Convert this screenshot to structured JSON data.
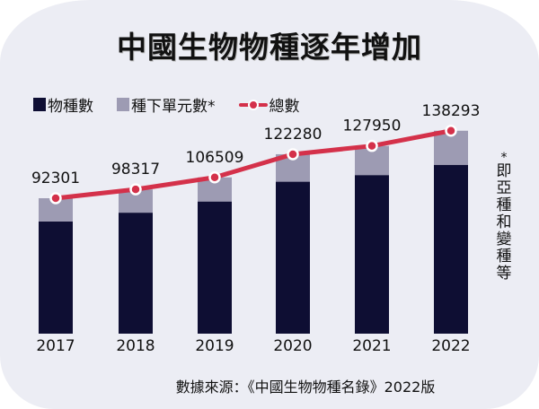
{
  "chart_data": {
    "type": "bar",
    "title": "中國生物物種逐年增加",
    "categories": [
      "2017",
      "2018",
      "2019",
      "2020",
      "2021",
      "2022"
    ],
    "series": [
      {
        "name": "物種數",
        "type": "bar",
        "stack": "total",
        "color": "#0e0e33",
        "values": [
          76463,
          82456,
          90063,
          103561,
          108083,
          115064
        ]
      },
      {
        "name": "種下單元數*",
        "type": "bar",
        "stack": "total",
        "color": "#9d9bb3",
        "values": [
          15838,
          15861,
          16446,
          18719,
          19867,
          23229
        ]
      },
      {
        "name": "總數",
        "type": "line",
        "color": "#d4314a",
        "values": [
          92301,
          98317,
          106509,
          122280,
          127950,
          138293
        ]
      }
    ],
    "data_labels": [
      "92301",
      "98317",
      "106509",
      "122280",
      "127950",
      "138293"
    ],
    "xlabel": "",
    "ylabel": "",
    "ylim": [
      0,
      150000
    ],
    "grid": false,
    "legend_position": "top-left",
    "footnote": [
      "*",
      "即",
      "亞",
      "種",
      "和",
      "變",
      "種",
      "等"
    ],
    "source": "數據來源：《中國生物物種名錄》2022版"
  },
  "legend": {
    "species": "物種數",
    "infraspecific": "種下單元數*",
    "total": "總數"
  }
}
